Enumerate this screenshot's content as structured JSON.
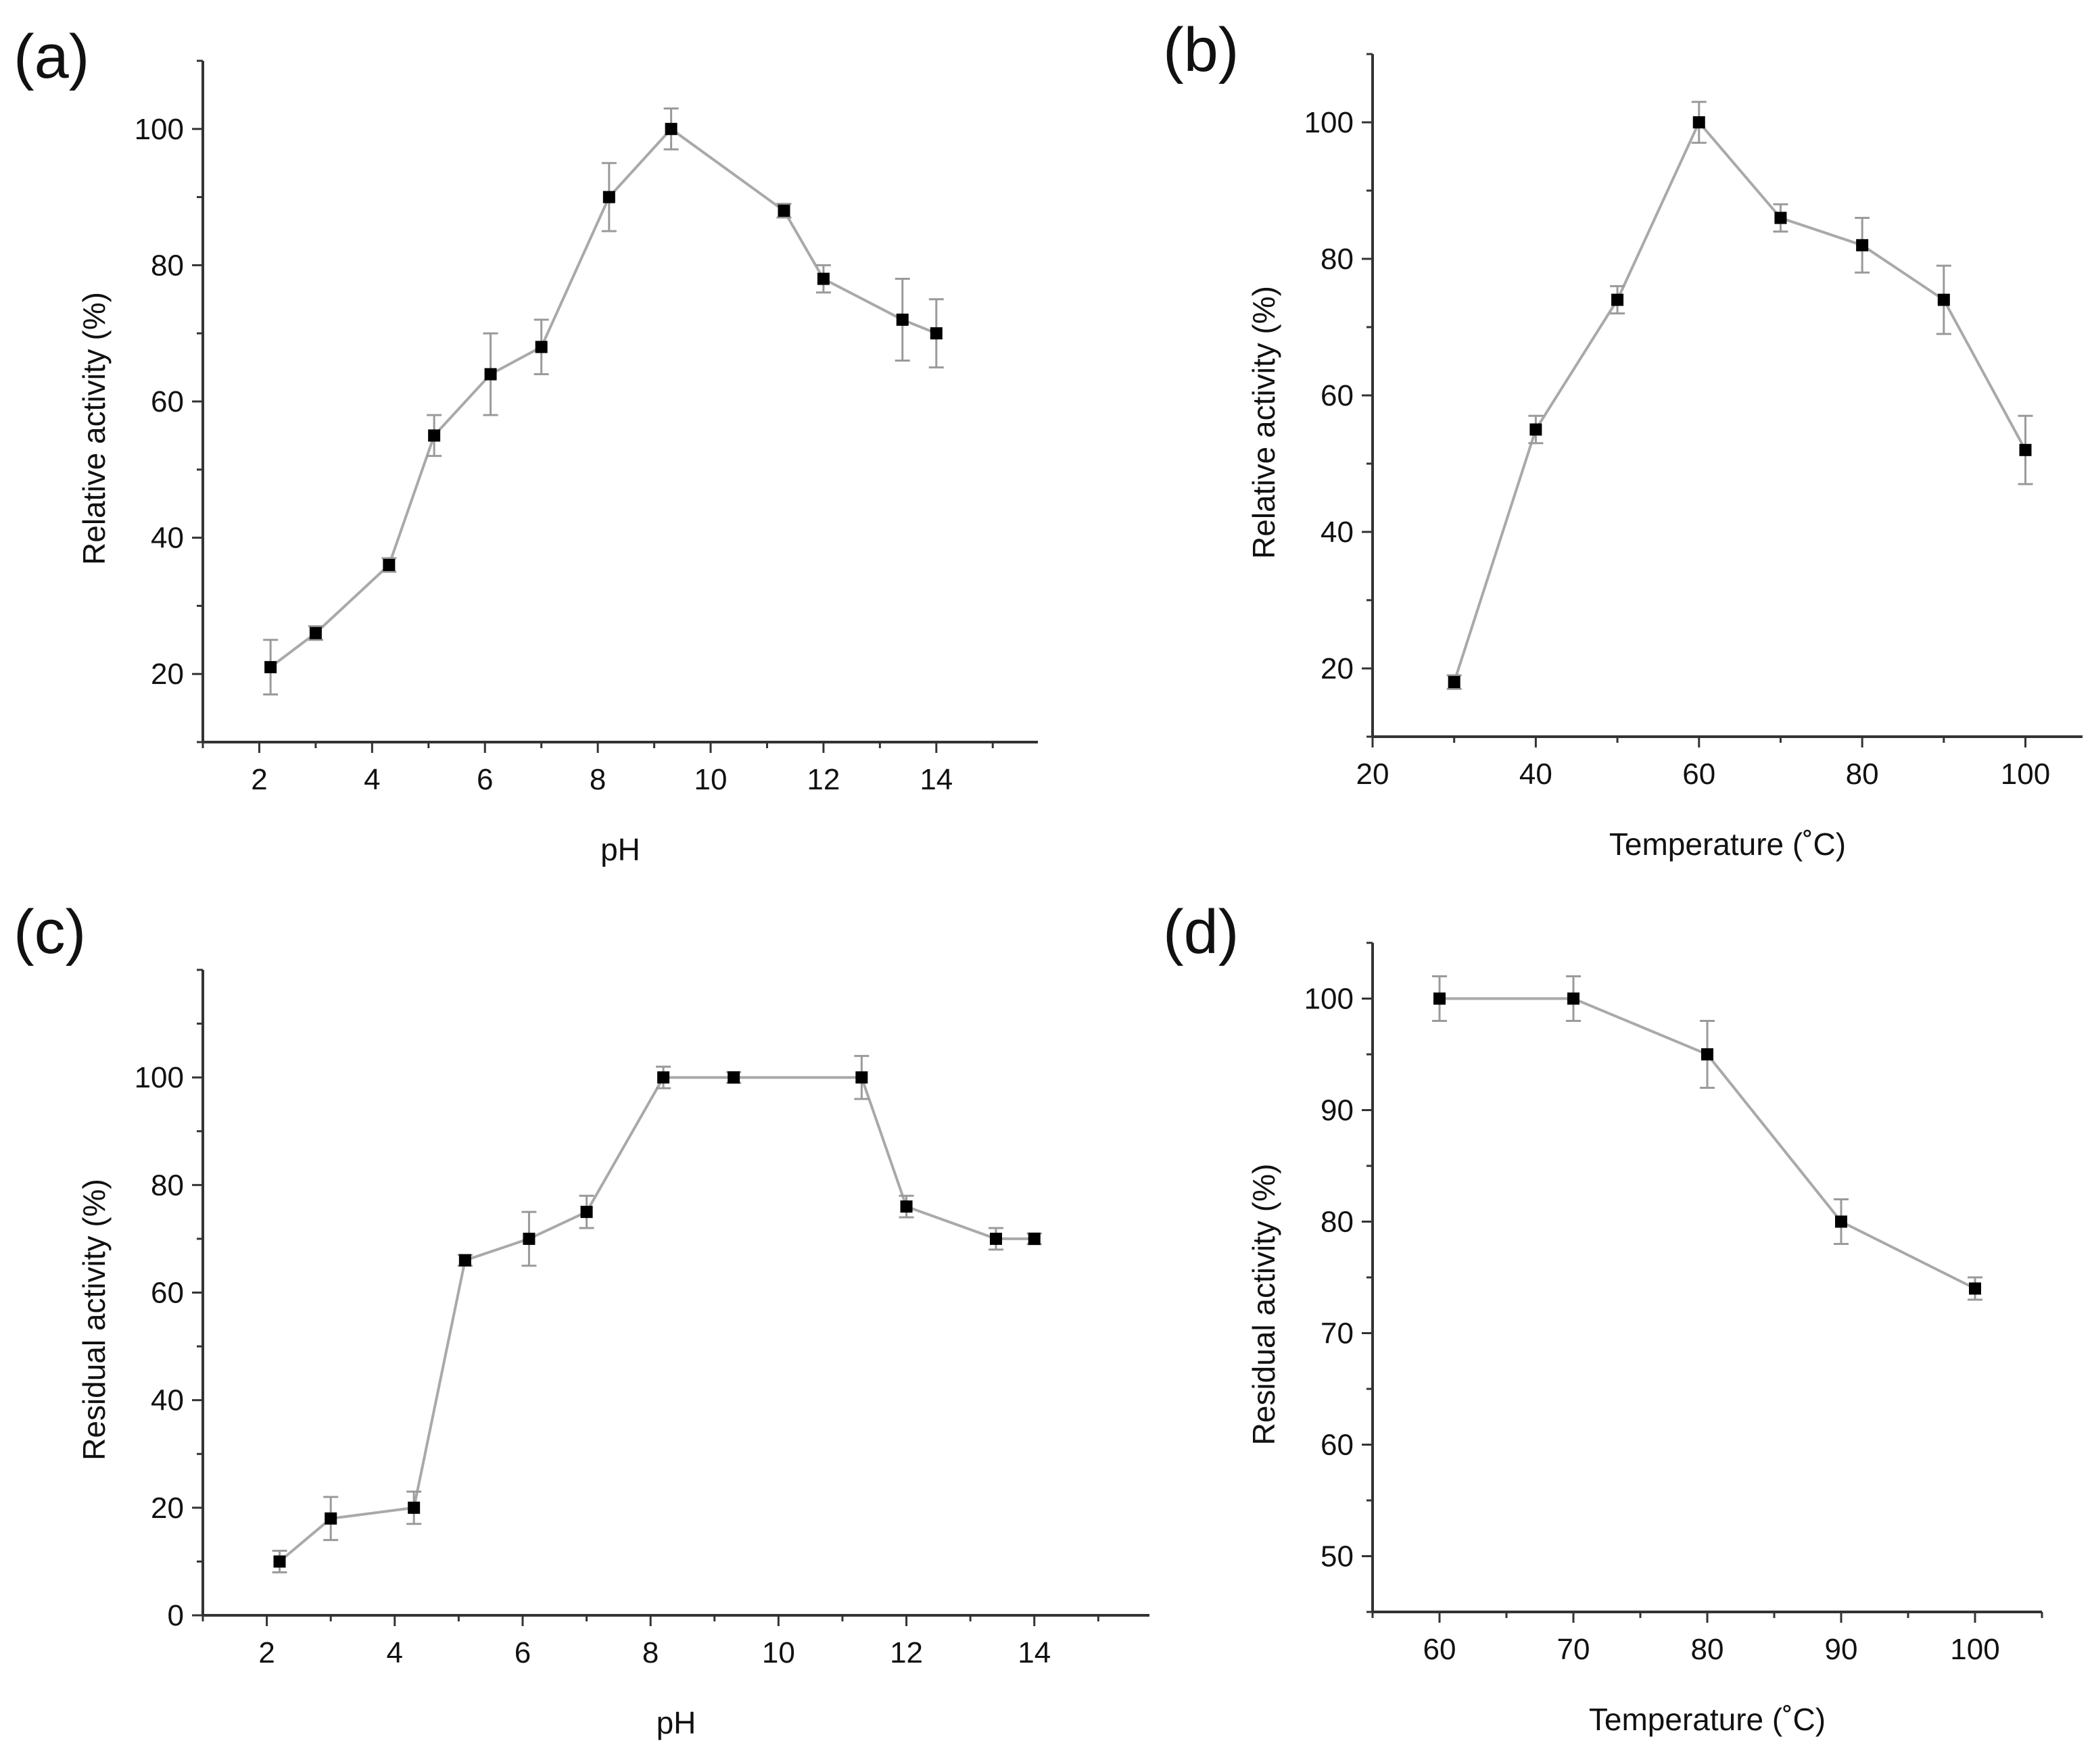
{
  "figure": {
    "colors": {
      "axis": "#333333",
      "line": "#a9a9a9",
      "error_bar": "#9a9a9a",
      "marker": "#000000"
    }
  },
  "chart_data": [
    {
      "panel": "(a)",
      "type": "line",
      "xlabel": "pH",
      "ylabel": "Relative activity (%)",
      "xlim": [
        1,
        15.8
      ],
      "ylim": [
        10,
        110
      ],
      "xticks": [
        2,
        4,
        6,
        8,
        10,
        12,
        14
      ],
      "yticks": [
        20,
        40,
        60,
        80,
        100
      ],
      "series": [
        {
          "name": "Relative activity",
          "x": [
            2.2,
            3.0,
            4.3,
            5.1,
            6.1,
            7.0,
            8.2,
            9.3,
            11.3,
            12.0,
            13.4,
            14.0
          ],
          "y": [
            21,
            26,
            36,
            55,
            64,
            68,
            90,
            100,
            88,
            78,
            72,
            70
          ],
          "error": [
            4,
            1,
            1,
            3,
            6,
            4,
            5,
            3,
            1,
            2,
            6,
            5
          ]
        }
      ]
    },
    {
      "panel": "(b)",
      "type": "line",
      "xlabel": "Temperature (˚C)",
      "ylabel": "Relative activity (%)",
      "xlim": [
        20,
        107
      ],
      "ylim": [
        10,
        110
      ],
      "xticks": [
        20,
        40,
        60,
        80,
        100
      ],
      "yticks": [
        20,
        40,
        60,
        80,
        100
      ],
      "series": [
        {
          "name": "Relative activity",
          "x": [
            30,
            40,
            50,
            60,
            70,
            80,
            90,
            100
          ],
          "y": [
            18,
            55,
            74,
            100,
            86,
            82,
            74,
            52
          ],
          "error": [
            1,
            2,
            2,
            3,
            2,
            4,
            5,
            5
          ]
        }
      ]
    },
    {
      "panel": "(c)",
      "type": "line",
      "xlabel": "pH",
      "ylabel": "Residual activity (%)",
      "xlim": [
        1,
        15.8
      ],
      "ylim": [
        0,
        120
      ],
      "xticks": [
        2,
        4,
        6,
        8,
        10,
        12,
        14
      ],
      "yticks": [
        0,
        20,
        40,
        60,
        80,
        100
      ],
      "series": [
        {
          "name": "Residual activity",
          "x": [
            2.2,
            3.0,
            4.3,
            5.1,
            6.1,
            7.0,
            8.2,
            9.3,
            11.3,
            12.0,
            13.4,
            14.0
          ],
          "y": [
            10,
            18,
            20,
            66,
            70,
            75,
            100,
            100,
            100,
            76,
            70,
            70
          ],
          "error": [
            2,
            4,
            3,
            1,
            5,
            3,
            2,
            1,
            4,
            2,
            2,
            1
          ]
        }
      ]
    },
    {
      "panel": "(d)",
      "type": "line",
      "xlabel": "Temperature (˚C)",
      "ylabel": "Residual activity (%)",
      "xlim": [
        55,
        105
      ],
      "ylim": [
        45,
        105
      ],
      "xticks": [
        60,
        70,
        80,
        90,
        100
      ],
      "yticks": [
        50,
        60,
        70,
        80,
        90,
        100
      ],
      "series": [
        {
          "name": "Residual activity",
          "x": [
            60,
            70,
            80,
            90,
            100
          ],
          "y": [
            100,
            100,
            95,
            80,
            74
          ],
          "error": [
            2,
            2,
            3,
            2,
            1
          ]
        }
      ]
    }
  ]
}
